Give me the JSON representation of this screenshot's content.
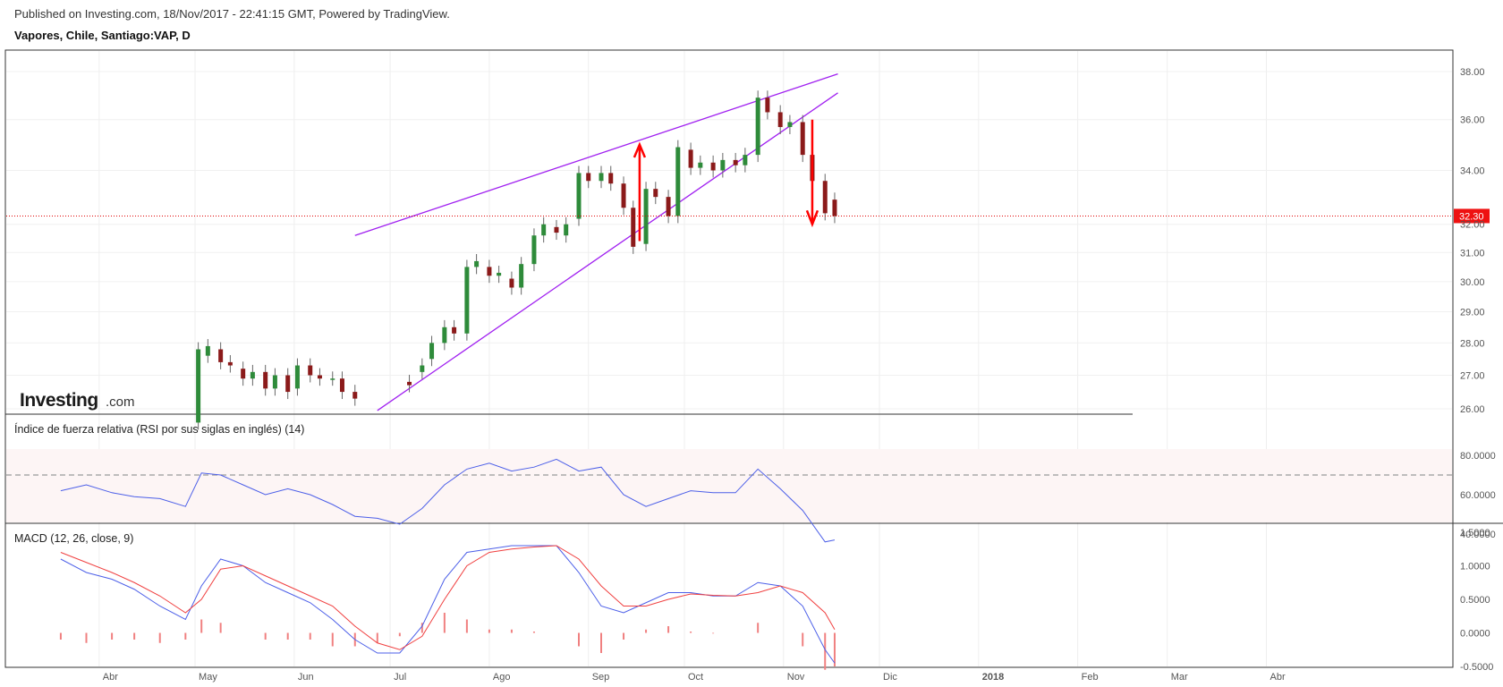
{
  "header": {
    "published": "Published on Investing.com, 18/Nov/2017 - 22:41:15 GMT, Powered by TradingView.",
    "title": "Vapores, Chile, Santiago:VAP, D"
  },
  "logo": {
    "main": "Investing",
    "suffix": ".com"
  },
  "colors": {
    "up": "#2e8b3a",
    "down": "#8b1a1a",
    "trend": "#a020f0",
    "arrow": "#ff0000",
    "price_line": "#e00000",
    "rsi_line": "#4c5fe8",
    "macd_line": "#4c5fe8",
    "signal_line": "#f04040",
    "hist": "#f08080",
    "rsi_band": "#fdf5f5"
  },
  "chart_data": [
    {
      "type": "candlestick",
      "title": "Vapores, Chile, Santiago:VAP, D",
      "y_ticks": [
        "38.00",
        "36.00",
        "34.00",
        "32.00",
        "31.00",
        "30.00",
        "29.00",
        "28.00",
        "27.00",
        "26.00"
      ],
      "y_tick_values": [
        38,
        36,
        34,
        32,
        31,
        30,
        29,
        28,
        27,
        26
      ],
      "scale": "logarithmic",
      "last_price": "32.30",
      "x_months": [
        "Abr",
        "May",
        "Jun",
        "Jul",
        "Ago",
        "Sep",
        "Oct",
        "Nov",
        "Dic",
        "2018",
        "Feb",
        "Mar",
        "Abr"
      ],
      "x_dates": [
        "2017-04",
        "2017-05",
        "2017-06",
        "2017-07",
        "2017-08",
        "2017-09",
        "2017-10",
        "2017-11",
        "2017-12",
        "2018-01",
        "2018-02",
        "2018-03",
        "2018-04"
      ],
      "ohlc_points": [
        [
          "2017-05-02",
          25.6,
          27.8
        ],
        [
          "2017-05-05",
          27.6,
          27.9
        ],
        [
          "2017-05-09",
          27.8,
          27.4
        ],
        [
          "2017-05-12",
          27.4,
          27.3
        ],
        [
          "2017-05-16",
          27.2,
          26.9
        ],
        [
          "2017-05-19",
          26.9,
          27.1
        ],
        [
          "2017-05-23",
          27.1,
          26.6
        ],
        [
          "2017-05-26",
          26.6,
          27.0
        ],
        [
          "2017-05-30",
          27.0,
          26.5
        ],
        [
          "2017-06-02",
          26.6,
          27.3
        ],
        [
          "2017-06-06",
          27.3,
          27.0
        ],
        [
          "2017-06-09",
          27.0,
          26.9
        ],
        [
          "2017-06-13",
          26.9,
          26.9
        ],
        [
          "2017-06-16",
          26.9,
          26.5
        ],
        [
          "2017-06-20",
          26.5,
          26.3
        ],
        [
          "2017-07-07",
          26.8,
          26.7
        ],
        [
          "2017-07-11",
          27.1,
          27.3
        ],
        [
          "2017-07-14",
          27.5,
          28.0
        ],
        [
          "2017-07-18",
          28.0,
          28.5
        ],
        [
          "2017-07-21",
          28.5,
          28.3
        ],
        [
          "2017-07-25",
          28.3,
          30.5
        ],
        [
          "2017-07-28",
          30.5,
          30.7
        ],
        [
          "2017-08-01",
          30.5,
          30.2
        ],
        [
          "2017-08-04",
          30.2,
          30.3
        ],
        [
          "2017-08-08",
          30.1,
          29.8
        ],
        [
          "2017-08-11",
          29.8,
          30.6
        ],
        [
          "2017-08-15",
          30.6,
          31.6
        ],
        [
          "2017-08-18",
          31.6,
          32.0
        ],
        [
          "2017-08-22",
          31.9,
          31.7
        ],
        [
          "2017-08-25",
          31.6,
          32.0
        ],
        [
          "2017-08-29",
          32.2,
          33.9
        ],
        [
          "2017-09-01",
          33.9,
          33.6
        ],
        [
          "2017-09-05",
          33.6,
          33.9
        ],
        [
          "2017-09-08",
          33.9,
          33.5
        ],
        [
          "2017-09-12",
          33.5,
          32.6
        ],
        [
          "2017-09-15",
          32.6,
          31.2
        ],
        [
          "2017-09-19",
          31.3,
          33.3
        ],
        [
          "2017-09-22",
          33.3,
          33.0
        ],
        [
          "2017-09-26",
          33.0,
          32.3
        ],
        [
          "2017-09-29",
          32.3,
          34.9
        ],
        [
          "2017-10-03",
          34.8,
          34.1
        ],
        [
          "2017-10-06",
          34.1,
          34.3
        ],
        [
          "2017-10-10",
          34.3,
          34.0
        ],
        [
          "2017-10-13",
          34.0,
          34.4
        ],
        [
          "2017-10-17",
          34.4,
          34.2
        ],
        [
          "2017-10-20",
          34.2,
          34.6
        ],
        [
          "2017-10-24",
          34.6,
          36.9
        ],
        [
          "2017-10-27",
          36.9,
          36.3
        ],
        [
          "2017-10-31",
          36.3,
          35.7
        ],
        [
          "2017-11-03",
          35.7,
          35.9
        ],
        [
          "2017-11-07",
          35.9,
          34.6
        ],
        [
          "2017-11-10",
          34.6,
          33.6
        ],
        [
          "2017-11-14",
          33.6,
          32.4
        ],
        [
          "2017-11-17",
          32.9,
          32.3
        ]
      ],
      "annotations": [
        "rising wedge upper trendline",
        "rising wedge lower trendline",
        "up arrow",
        "down arrow"
      ]
    },
    {
      "type": "line",
      "title": "Índice de fuerza relativa (RSI por sus siglas en inglés) (14)",
      "y_ticks": [
        "80.0000",
        "60.0000",
        "40.0000"
      ],
      "y_tick_values": [
        80,
        60,
        40
      ],
      "band": [
        30,
        70
      ],
      "series": [
        {
          "x": [
            "2017-03-20",
            "2017-03-28",
            "2017-04-05",
            "2017-04-12",
            "2017-04-20",
            "2017-04-28",
            "2017-05-03",
            "2017-05-09",
            "2017-05-16",
            "2017-05-23",
            "2017-05-30",
            "2017-06-06",
            "2017-06-13",
            "2017-06-20",
            "2017-06-27",
            "2017-07-04",
            "2017-07-11",
            "2017-07-18",
            "2017-07-25",
            "2017-08-01",
            "2017-08-08",
            "2017-08-15",
            "2017-08-22",
            "2017-08-29",
            "2017-09-05",
            "2017-09-12",
            "2017-09-19",
            "2017-09-26",
            "2017-10-03",
            "2017-10-10",
            "2017-10-17",
            "2017-10-24",
            "2017-10-31",
            "2017-11-07",
            "2017-11-14",
            "2017-11-17"
          ],
          "values": [
            62,
            65,
            61,
            59,
            58,
            54,
            71,
            70,
            65,
            60,
            63,
            60,
            55,
            49,
            48,
            45,
            53,
            65,
            73,
            76,
            72,
            74,
            78,
            72,
            74,
            60,
            54,
            58,
            62,
            61,
            61,
            73,
            63,
            52,
            36,
            37
          ]
        }
      ]
    },
    {
      "type": "line",
      "title": "MACD (12, 26, close, 9)",
      "y_ticks": [
        "1.5000",
        "1.0000",
        "0.5000",
        "0.0000",
        "-0.5000"
      ],
      "y_tick_values": [
        1.5,
        1.0,
        0.5,
        0.0,
        -0.5
      ],
      "categories": [
        "2017-03-20",
        "2017-03-28",
        "2017-04-05",
        "2017-04-12",
        "2017-04-20",
        "2017-04-28",
        "2017-05-03",
        "2017-05-09",
        "2017-05-16",
        "2017-05-23",
        "2017-05-30",
        "2017-06-06",
        "2017-06-13",
        "2017-06-20",
        "2017-06-27",
        "2017-07-04",
        "2017-07-11",
        "2017-07-18",
        "2017-07-25",
        "2017-08-01",
        "2017-08-08",
        "2017-08-15",
        "2017-08-22",
        "2017-08-29",
        "2017-09-05",
        "2017-09-12",
        "2017-09-19",
        "2017-09-26",
        "2017-10-03",
        "2017-10-10",
        "2017-10-17",
        "2017-10-24",
        "2017-10-31",
        "2017-11-07",
        "2017-11-14",
        "2017-11-17"
      ],
      "series": [
        {
          "name": "MACD",
          "values": [
            1.1,
            0.9,
            0.8,
            0.65,
            0.4,
            0.2,
            0.7,
            1.1,
            1.0,
            0.75,
            0.6,
            0.45,
            0.2,
            -0.1,
            -0.3,
            -0.3,
            0.1,
            0.8,
            1.2,
            1.25,
            1.3,
            1.3,
            1.3,
            0.9,
            0.4,
            0.3,
            0.45,
            0.6,
            0.6,
            0.55,
            0.55,
            0.75,
            0.7,
            0.4,
            -0.25,
            -0.45
          ]
        },
        {
          "name": "Signal",
          "values": [
            1.2,
            1.05,
            0.9,
            0.75,
            0.55,
            0.3,
            0.5,
            0.95,
            1.0,
            0.85,
            0.7,
            0.55,
            0.4,
            0.1,
            -0.15,
            -0.25,
            -0.05,
            0.5,
            1.0,
            1.2,
            1.25,
            1.28,
            1.3,
            1.1,
            0.7,
            0.4,
            0.4,
            0.5,
            0.58,
            0.56,
            0.55,
            0.6,
            0.7,
            0.6,
            0.3,
            0.05
          ]
        },
        {
          "name": "Histogram",
          "values": [
            -0.1,
            -0.15,
            -0.1,
            -0.1,
            -0.15,
            -0.1,
            0.2,
            0.15,
            0.0,
            -0.1,
            -0.1,
            -0.1,
            -0.2,
            -0.2,
            -0.15,
            -0.05,
            0.15,
            0.3,
            0.2,
            0.05,
            0.05,
            0.02,
            0.0,
            -0.2,
            -0.3,
            -0.1,
            0.05,
            0.1,
            0.02,
            -0.01,
            0.0,
            0.15,
            0.0,
            -0.2,
            -0.55,
            -0.5
          ]
        }
      ]
    }
  ]
}
